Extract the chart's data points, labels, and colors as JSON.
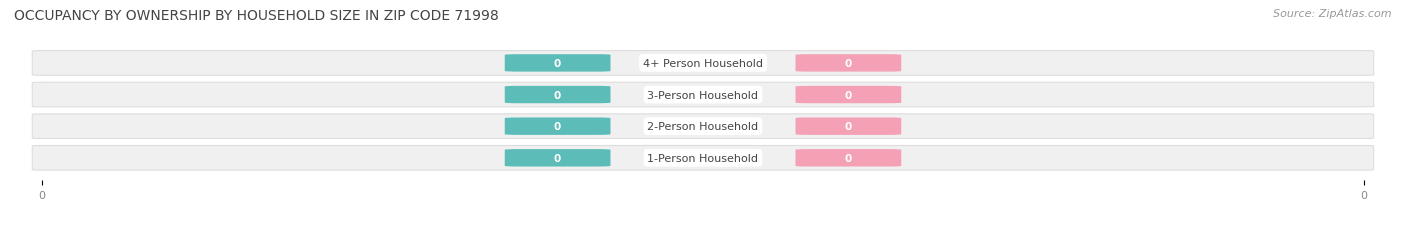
{
  "title": "OCCUPANCY BY OWNERSHIP BY HOUSEHOLD SIZE IN ZIP CODE 71998",
  "source": "Source: ZipAtlas.com",
  "categories": [
    "1-Person Household",
    "2-Person Household",
    "3-Person Household",
    "4+ Person Household"
  ],
  "owner_values": [
    0,
    0,
    0,
    0
  ],
  "renter_values": [
    0,
    0,
    0,
    0
  ],
  "owner_color": "#5bbcb8",
  "renter_color": "#f4a0b5",
  "bar_label_color": "#ffffff",
  "background_color": "#ffffff",
  "bar_bg_color": "#f0f0f0",
  "bar_bg_edge_color": "#dddddd",
  "center_label_color": "#444444",
  "title_color": "#444444",
  "source_color": "#999999",
  "tick_color": "#888888",
  "xlim": [
    -1,
    1
  ],
  "title_fontsize": 10,
  "source_fontsize": 8,
  "label_fontsize": 8,
  "tick_fontsize": 8
}
